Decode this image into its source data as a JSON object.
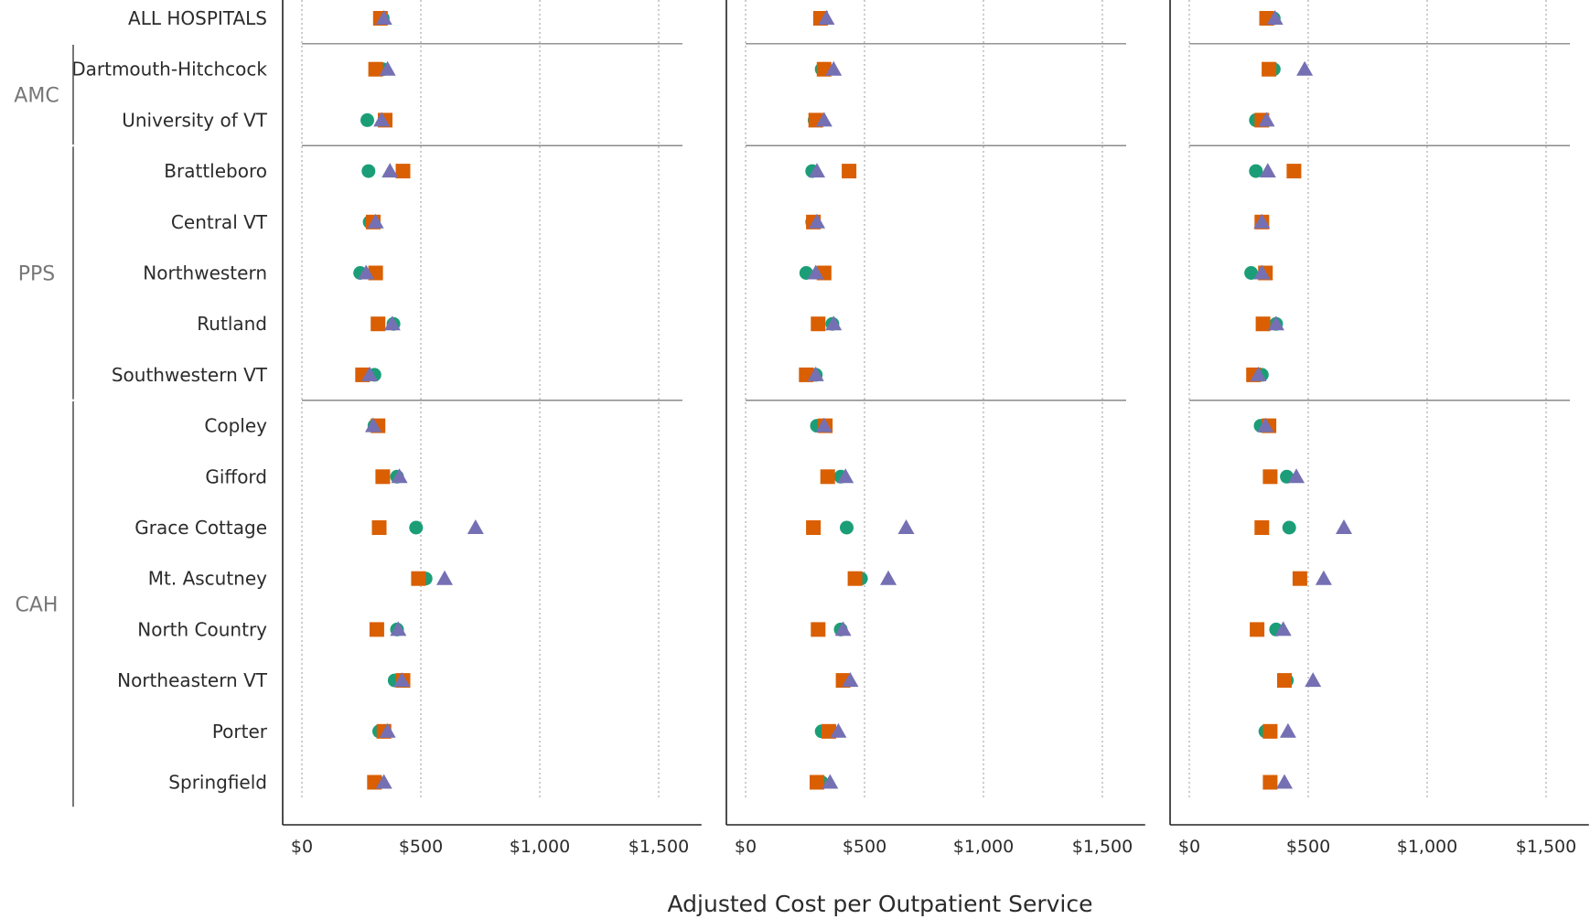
{
  "chart_data": {
    "type": "scatter",
    "xlabel": "Adjusted Cost per Outpatient Service",
    "xlim": [
      -80,
      1680
    ],
    "xticks": [
      0,
      500,
      1000,
      1500
    ],
    "xtick_labels": [
      "$0",
      "$500",
      "$1,000",
      "$1,500"
    ],
    "grid": "vertical dotted",
    "groups": [
      {
        "label": "AMC",
        "rows": [
          1,
          2
        ]
      },
      {
        "label": "PPS",
        "rows": [
          3,
          7
        ]
      },
      {
        "label": "CAH",
        "rows": [
          8,
          15
        ]
      }
    ],
    "separators_after_rows": [
      0,
      2,
      7
    ],
    "hospitals": [
      "ALL HOSPITALS",
      "Dartmouth-Hitchcock",
      "University of VT",
      "Brattleboro",
      "Central VT",
      "Northwestern",
      "Rutland",
      "Southwestern VT",
      "Copley",
      "Gifford",
      "Grace Cottage",
      "Mt. Ascutney",
      "North Country",
      "Northeastern VT",
      "Porter",
      "Springfield"
    ],
    "colors": {
      "circle": "#1b9e77",
      "square": "#d95f02",
      "triangle": "#7570b3"
    },
    "panels": [
      {
        "circle": [
          340,
          340,
          275,
          280,
          285,
          245,
          385,
          305,
          305,
          400,
          480,
          520,
          400,
          390,
          325,
          320
        ],
        "square": [
          330,
          310,
          350,
          425,
          300,
          310,
          320,
          255,
          320,
          340,
          325,
          490,
          315,
          425,
          345,
          305
        ],
        "triangle": [
          345,
          360,
          335,
          370,
          310,
          270,
          380,
          285,
          300,
          410,
          730,
          600,
          405,
          420,
          360,
          345
        ]
      },
      {
        "circle": [
          320,
          320,
          290,
          280,
          280,
          255,
          365,
          295,
          300,
          400,
          425,
          485,
          400,
          425,
          320,
          320
        ],
        "square": [
          315,
          330,
          295,
          435,
          285,
          330,
          305,
          255,
          335,
          345,
          285,
          460,
          305,
          410,
          350,
          300
        ],
        "triangle": [
          340,
          370,
          330,
          300,
          300,
          295,
          370,
          295,
          330,
          420,
          675,
          600,
          410,
          440,
          390,
          355
        ]
      },
      {
        "circle": [
          355,
          355,
          280,
          280,
          305,
          260,
          365,
          305,
          300,
          410,
          420,
          465,
          365,
          410,
          320,
          340
        ],
        "square": [
          325,
          335,
          305,
          440,
          305,
          320,
          310,
          270,
          335,
          340,
          305,
          465,
          285,
          400,
          340,
          340
        ],
        "triangle": [
          360,
          485,
          325,
          330,
          305,
          305,
          365,
          290,
          320,
          450,
          650,
          565,
          395,
          520,
          415,
          400
        ]
      }
    ]
  }
}
